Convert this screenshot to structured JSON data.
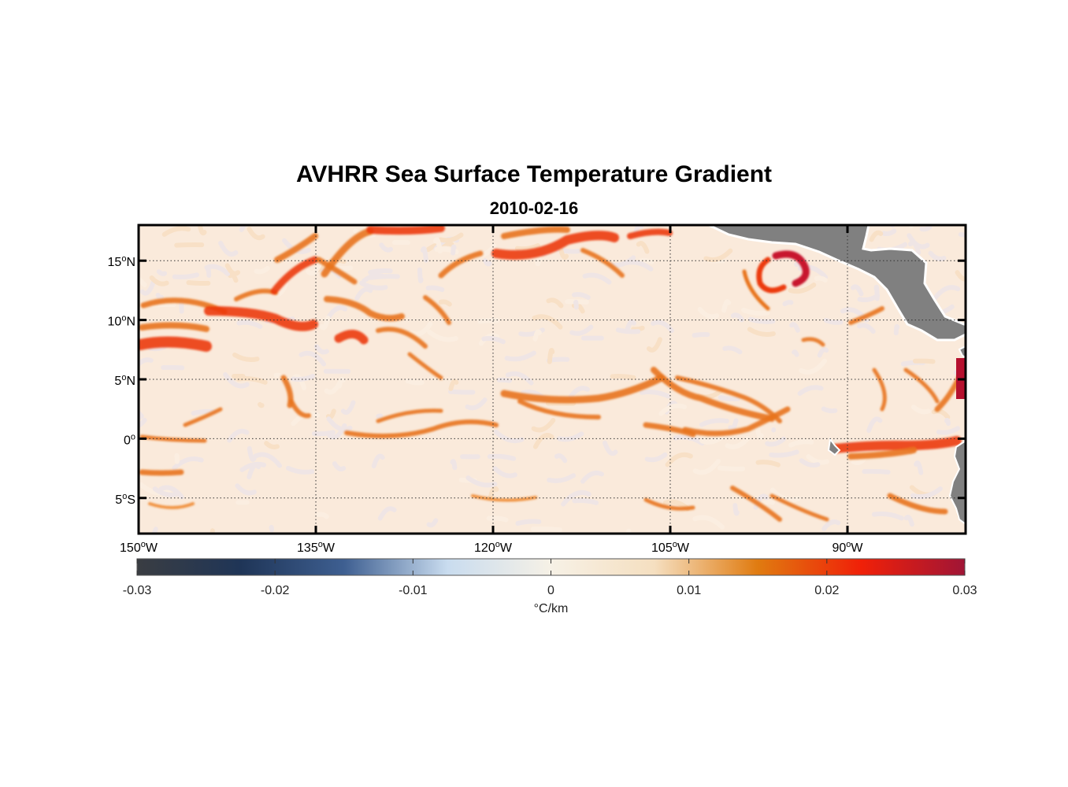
{
  "title": "AVHRR Sea Surface Temperature Gradient",
  "subtitle": "2010-02-16",
  "map": {
    "lon_range": [
      -150,
      -80
    ],
    "lat_range": [
      -8,
      18
    ],
    "lat_ticks": [
      {
        "value": 15,
        "deg": "15",
        "hem": "N"
      },
      {
        "value": 10,
        "deg": "10",
        "hem": "N"
      },
      {
        "value": 5,
        "deg": "5",
        "hem": "N"
      },
      {
        "value": 0,
        "deg": "0",
        "hem": ""
      },
      {
        "value": -5,
        "deg": "5",
        "hem": "S"
      }
    ],
    "lon_ticks": [
      {
        "value": -150,
        "deg": "150",
        "hem": "W"
      },
      {
        "value": -135,
        "deg": "135",
        "hem": "W"
      },
      {
        "value": -120,
        "deg": "120",
        "hem": "W"
      },
      {
        "value": -105,
        "deg": "105",
        "hem": "W"
      },
      {
        "value": -90,
        "deg": "90",
        "hem": "W"
      }
    ],
    "grid": true,
    "land_color": "#808080"
  },
  "colorbar": {
    "min": -0.03,
    "max": 0.03,
    "tick_values": [
      -0.03,
      -0.02,
      -0.01,
      0,
      0.01,
      0.02,
      0.03
    ],
    "tick_labels": [
      "-0.03",
      "-0.02",
      "-0.01",
      "0",
      "0.01",
      "0.02",
      "0.03"
    ],
    "label": "°C/km",
    "colors": [
      "#3a3d42",
      "#1f3557",
      "#3e5f91",
      "#c9dcef",
      "#f6f1e6",
      "#f5dfc0",
      "#e07b10",
      "#f02008",
      "#a01536"
    ]
  }
}
